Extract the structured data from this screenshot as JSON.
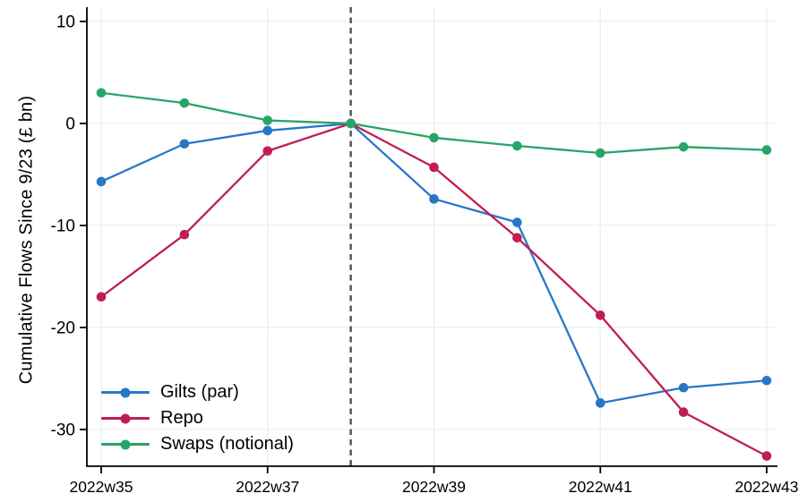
{
  "chart_data": {
    "type": "line",
    "title": "",
    "ylabel": "Cumulative Flows Since 9/23 (£ bn)",
    "xlabel": "",
    "x": [
      "2022w35",
      "2022w36",
      "2022w37",
      "2022w38",
      "2022w39",
      "2022w40",
      "2022w41",
      "2022w42",
      "2022w43"
    ],
    "x_tick_labels": [
      "2022w35",
      "2022w37",
      "2022w39",
      "2022w41",
      "2022w43"
    ],
    "yticks": [
      10,
      0,
      -10,
      -20,
      -30
    ],
    "ylim": [
      -33.6,
      11.4
    ],
    "grid": true,
    "legend_position": "bottom-left",
    "vline": {
      "x": "2022w38",
      "style": "dashed",
      "color": "#4f4f4f"
    },
    "series": [
      {
        "name": "Gilts (par)",
        "color": "#2777c9",
        "values": [
          -5.7,
          -2.0,
          -0.7,
          0,
          -7.4,
          -9.7,
          -27.4,
          -25.9,
          -25.2
        ]
      },
      {
        "name": "Repo",
        "color": "#c01e50",
        "values": [
          -17.0,
          -10.9,
          -2.7,
          0,
          -4.3,
          -11.2,
          -18.8,
          -28.3,
          -32.6
        ]
      },
      {
        "name": "Swaps (notional)",
        "color": "#27a567",
        "values": [
          3.0,
          2.0,
          0.3,
          0,
          -1.4,
          -2.2,
          -2.9,
          -2.3,
          -2.6
        ]
      }
    ],
    "style": {
      "axis_color": "#000000",
      "grid_color": "#ececec",
      "marker": "circle"
    }
  }
}
